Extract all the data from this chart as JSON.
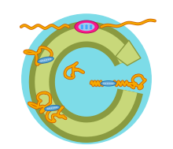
{
  "bg_color": "#FFFFFF",
  "circle_color": "#7DDCE8",
  "arrow_color": "#C8D87A",
  "arrow_edge": "#8A9A40",
  "polymer_orange": "#F5A800",
  "polymer_edge": "#D06000",
  "mechanophore_blue": "#6BAED6",
  "mechanophore_edge": "#2171B5",
  "glow_pink": "#FF1090",
  "glow_cyan": "#90E8FF"
}
